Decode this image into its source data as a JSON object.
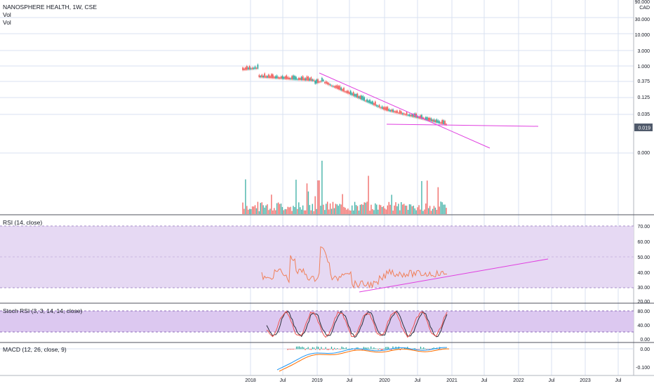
{
  "header": {
    "symbol": "NANOSPHERE HEALTH, 1W, CSE",
    "legend_lines": [
      "Vol",
      "Vol"
    ]
  },
  "price_axis": {
    "currency": "CAD",
    "labels": [
      "90.000",
      "30.000",
      "10.000",
      "3.000",
      "1.000",
      "0.375",
      "0.125",
      "0.035",
      "0.000"
    ],
    "current_price": "0.019"
  },
  "panes": {
    "rsi": {
      "title": "RSI (14, close)",
      "labels": [
        "70.00",
        "60.00",
        "50.00",
        "40.00",
        "30.00",
        "20.00"
      ]
    },
    "stoch": {
      "title": "Stoch RSI (3, 3, 14, 14, close)",
      "labels": [
        "80.00",
        "40.00",
        "0.00"
      ]
    },
    "macd": {
      "title": "MACD (12, 26, close, 9)",
      "labels": [
        "0.00",
        "-0.100"
      ]
    }
  },
  "time_axis": [
    "2018",
    "Jul",
    "2019",
    "Jul",
    "2020",
    "Jul",
    "2021",
    "Jul",
    "2022",
    "Jul",
    "2023",
    "Jul"
  ],
  "colors": {
    "up": "#26a69a",
    "down": "#ef5350",
    "trendline": "#e040e0",
    "rsi_line": "#f0805a",
    "rsi_band": "#e6d9f3",
    "stoch_k": "#2a2e39",
    "stoch_d": "#ef5350",
    "macd_line": "#2196f3",
    "signal_line": "#ff6d00",
    "grid": "#d8e2f0",
    "price_tag": "#505a6b"
  }
}
